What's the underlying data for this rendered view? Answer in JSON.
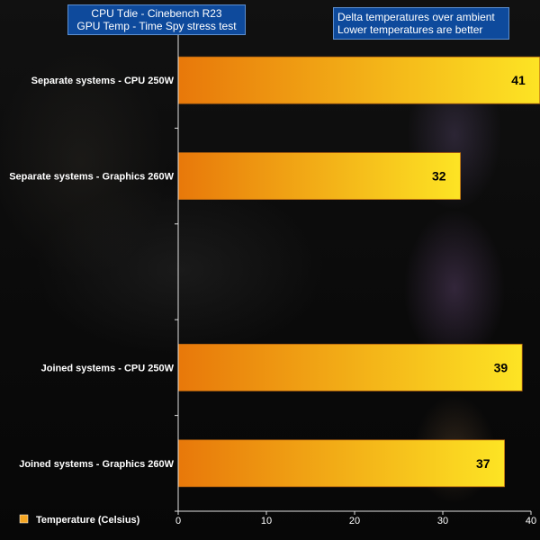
{
  "chart_data": {
    "type": "bar",
    "orientation": "horizontal",
    "title_lines": [
      "CPU Tdie - Cinebench R23",
      "GPU Temp - Time Spy stress test"
    ],
    "note_lines": [
      "Delta temperatures over ambient",
      "Lower temperatures are better"
    ],
    "categories": [
      "Separate systems - CPU 250W",
      "Separate systems - Graphics 260W",
      "",
      "Joined systems - CPU 250W",
      "Joined systems - Graphics 260W"
    ],
    "values": [
      41,
      32,
      null,
      39,
      37
    ],
    "series": [
      {
        "name": "Temperature (Celsius)",
        "values": [
          41,
          32,
          null,
          39,
          37
        ]
      }
    ],
    "xlim": [
      0,
      40
    ],
    "x_ticks": [
      0,
      10,
      20,
      30,
      40
    ],
    "legend": {
      "label": "Temperature (Celsius)",
      "position": "bottom-left"
    },
    "colors": {
      "bar_start": "#e8780a",
      "bar_end": "#fde424",
      "bar_edge": "#b06010",
      "axis": "#e0e0e0",
      "legend_swatch": "#f5a623"
    }
  }
}
